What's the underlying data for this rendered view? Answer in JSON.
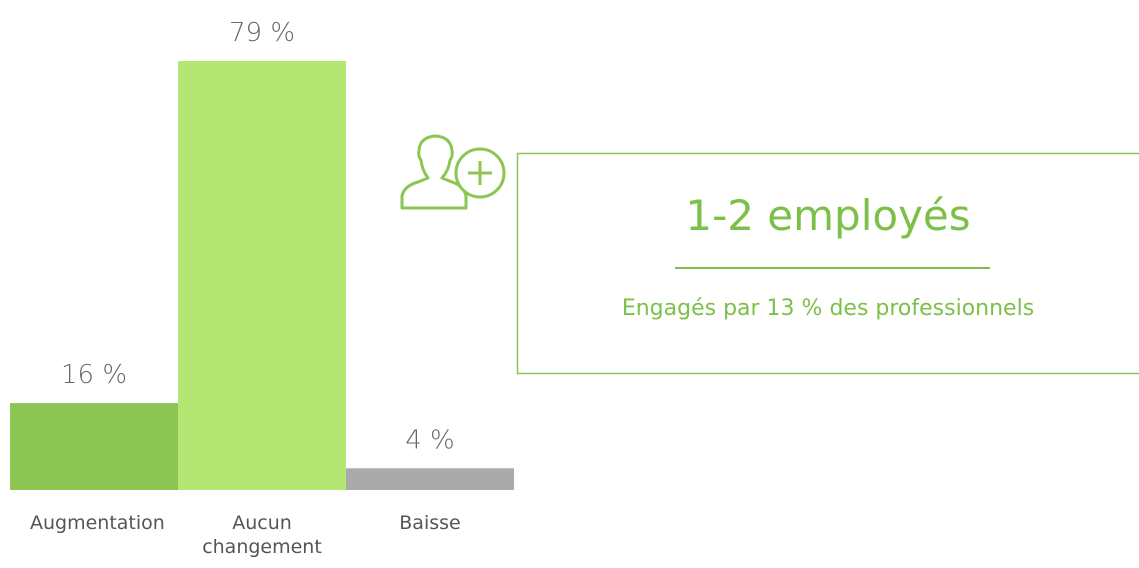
{
  "chart_data": {
    "type": "bar",
    "categories": [
      "Augmentation",
      "Aucun changement",
      "Baisse"
    ],
    "values": [
      16,
      79,
      4
    ],
    "value_labels": [
      "16 %",
      "79 %",
      "4 %"
    ],
    "colors": [
      "#8bc653",
      "#b5e673",
      "#aaaaaa"
    ]
  },
  "callout": {
    "title": "1-2 employés",
    "subtitle": "Engagés par 13 % des professionnels"
  }
}
